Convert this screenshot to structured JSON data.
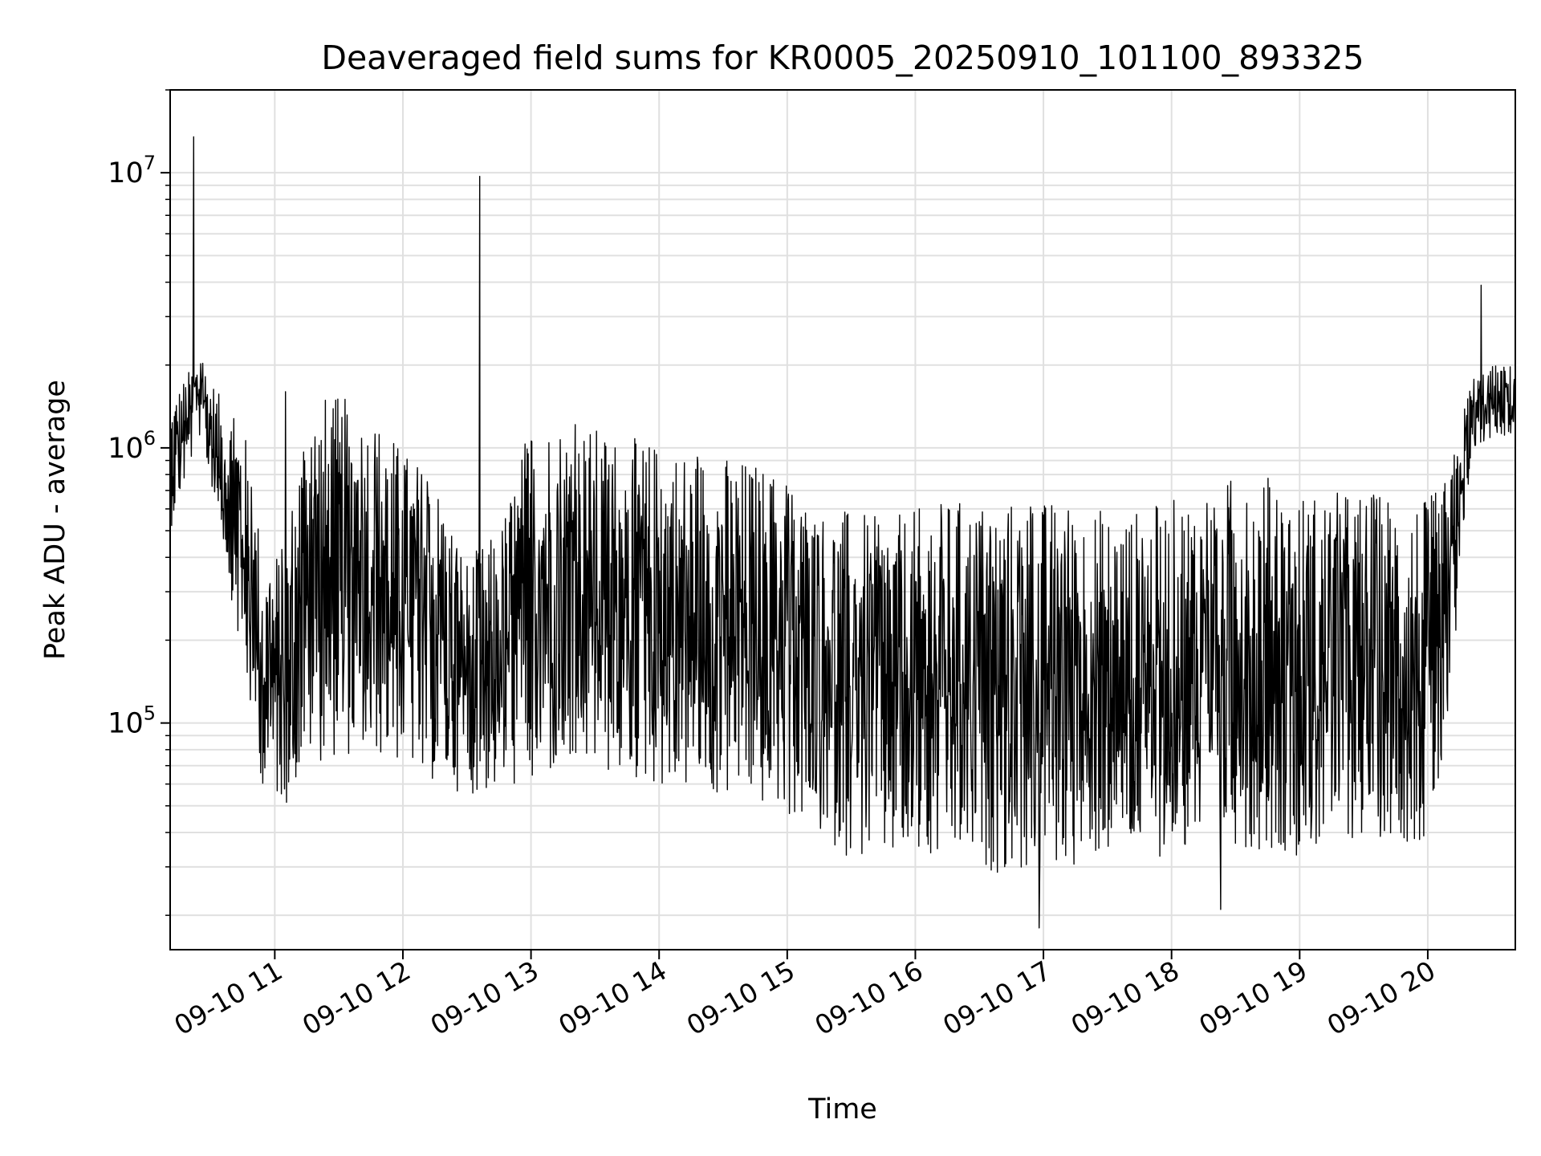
{
  "chart_data": {
    "type": "line",
    "title": "Deaveraged field sums for KR0005_20250910_101100_893325",
    "xlabel": "Time",
    "ylabel": "Peak ADU - average",
    "yscale": "log",
    "ylim": [
      15000,
      20000000
    ],
    "xlim": [
      "2025-09-10T10:11",
      "2025-09-10T20:41"
    ],
    "grid": true,
    "line_color": "#000000",
    "grid_color": "#e0e0e0",
    "x_ticks": [
      {
        "value": "2025-09-10T11:00",
        "label": "09-10 11"
      },
      {
        "value": "2025-09-10T12:00",
        "label": "09-10 12"
      },
      {
        "value": "2025-09-10T13:00",
        "label": "09-10 13"
      },
      {
        "value": "2025-09-10T14:00",
        "label": "09-10 14"
      },
      {
        "value": "2025-09-10T15:00",
        "label": "09-10 15"
      },
      {
        "value": "2025-09-10T16:00",
        "label": "09-10 16"
      },
      {
        "value": "2025-09-10T17:00",
        "label": "09-10 17"
      },
      {
        "value": "2025-09-10T18:00",
        "label": "09-10 18"
      },
      {
        "value": "2025-09-10T19:00",
        "label": "09-10 19"
      },
      {
        "value": "2025-09-10T20:00",
        "label": "09-10 20"
      }
    ],
    "y_ticks": [
      {
        "value": 100000,
        "base": "10",
        "exp": "5"
      },
      {
        "value": 1000000,
        "base": "10",
        "exp": "6"
      },
      {
        "value": 10000000,
        "base": "10",
        "exp": "7"
      }
    ],
    "envelope": {
      "x": [
        "2025-09-10T10:11",
        "2025-09-10T10:25",
        "2025-09-10T10:35",
        "2025-09-10T10:45",
        "2025-09-10T10:55",
        "2025-09-10T11:05",
        "2025-09-10T11:15",
        "2025-09-10T11:30",
        "2025-09-10T11:45",
        "2025-09-10T12:00",
        "2025-09-10T12:15",
        "2025-09-10T12:30",
        "2025-09-10T12:45",
        "2025-09-10T13:00",
        "2025-09-10T13:15",
        "2025-09-10T13:30",
        "2025-09-10T13:45",
        "2025-09-10T14:00",
        "2025-09-10T14:15",
        "2025-09-10T14:30",
        "2025-09-10T14:45",
        "2025-09-10T15:00",
        "2025-09-10T15:15",
        "2025-09-10T15:30",
        "2025-09-10T15:45",
        "2025-09-10T16:00",
        "2025-09-10T16:15",
        "2025-09-10T16:30",
        "2025-09-10T16:45",
        "2025-09-10T17:00",
        "2025-09-10T17:15",
        "2025-09-10T17:30",
        "2025-09-10T17:45",
        "2025-09-10T18:00",
        "2025-09-10T18:15",
        "2025-09-10T18:30",
        "2025-09-10T18:45",
        "2025-09-10T19:00",
        "2025-09-10T19:15",
        "2025-09-10T19:30",
        "2025-09-10T19:45",
        "2025-09-10T20:00",
        "2025-09-10T20:10",
        "2025-09-10T20:20",
        "2025-09-10T20:30",
        "2025-09-10T20:41"
      ],
      "upper": [
        1500000,
        2200000,
        1500000,
        1300000,
        400000,
        450000,
        1600000,
        1550000,
        1400000,
        1000000,
        800000,
        400000,
        500000,
        1300000,
        1300000,
        1200000,
        1100000,
        1050000,
        1000000,
        950000,
        900000,
        800000,
        600000,
        600000,
        550000,
        600000,
        650000,
        650000,
        650000,
        650000,
        650000,
        600000,
        600000,
        650000,
        750000,
        800000,
        800000,
        700000,
        700000,
        700000,
        700000,
        650000,
        800000,
        1800000,
        2000000,
        2000000
      ],
      "lower": [
        500000,
        1100000,
        500000,
        150000,
        55000,
        50000,
        70000,
        75000,
        75000,
        70000,
        60000,
        55000,
        55000,
        60000,
        62000,
        65000,
        60000,
        58000,
        55000,
        52000,
        50000,
        45000,
        38000,
        32000,
        30000,
        30000,
        30000,
        29000,
        28000,
        28000,
        30000,
        32000,
        32000,
        33000,
        35000,
        36000,
        34000,
        33000,
        35000,
        38000,
        38000,
        35000,
        80000,
        900000,
        1100000,
        1100000
      ]
    },
    "spikes": [
      {
        "x": "2025-09-10T10:22",
        "value": 13500000
      },
      {
        "x": "2025-09-10T11:05",
        "value": 1600000
      },
      {
        "x": "2025-09-10T12:36",
        "value": 9700000
      },
      {
        "x": "2025-09-10T20:25",
        "value": 3900000
      },
      {
        "x": "2025-09-10T16:58",
        "value": 18000
      },
      {
        "x": "2025-09-10T18:23",
        "value": 21000
      }
    ]
  }
}
